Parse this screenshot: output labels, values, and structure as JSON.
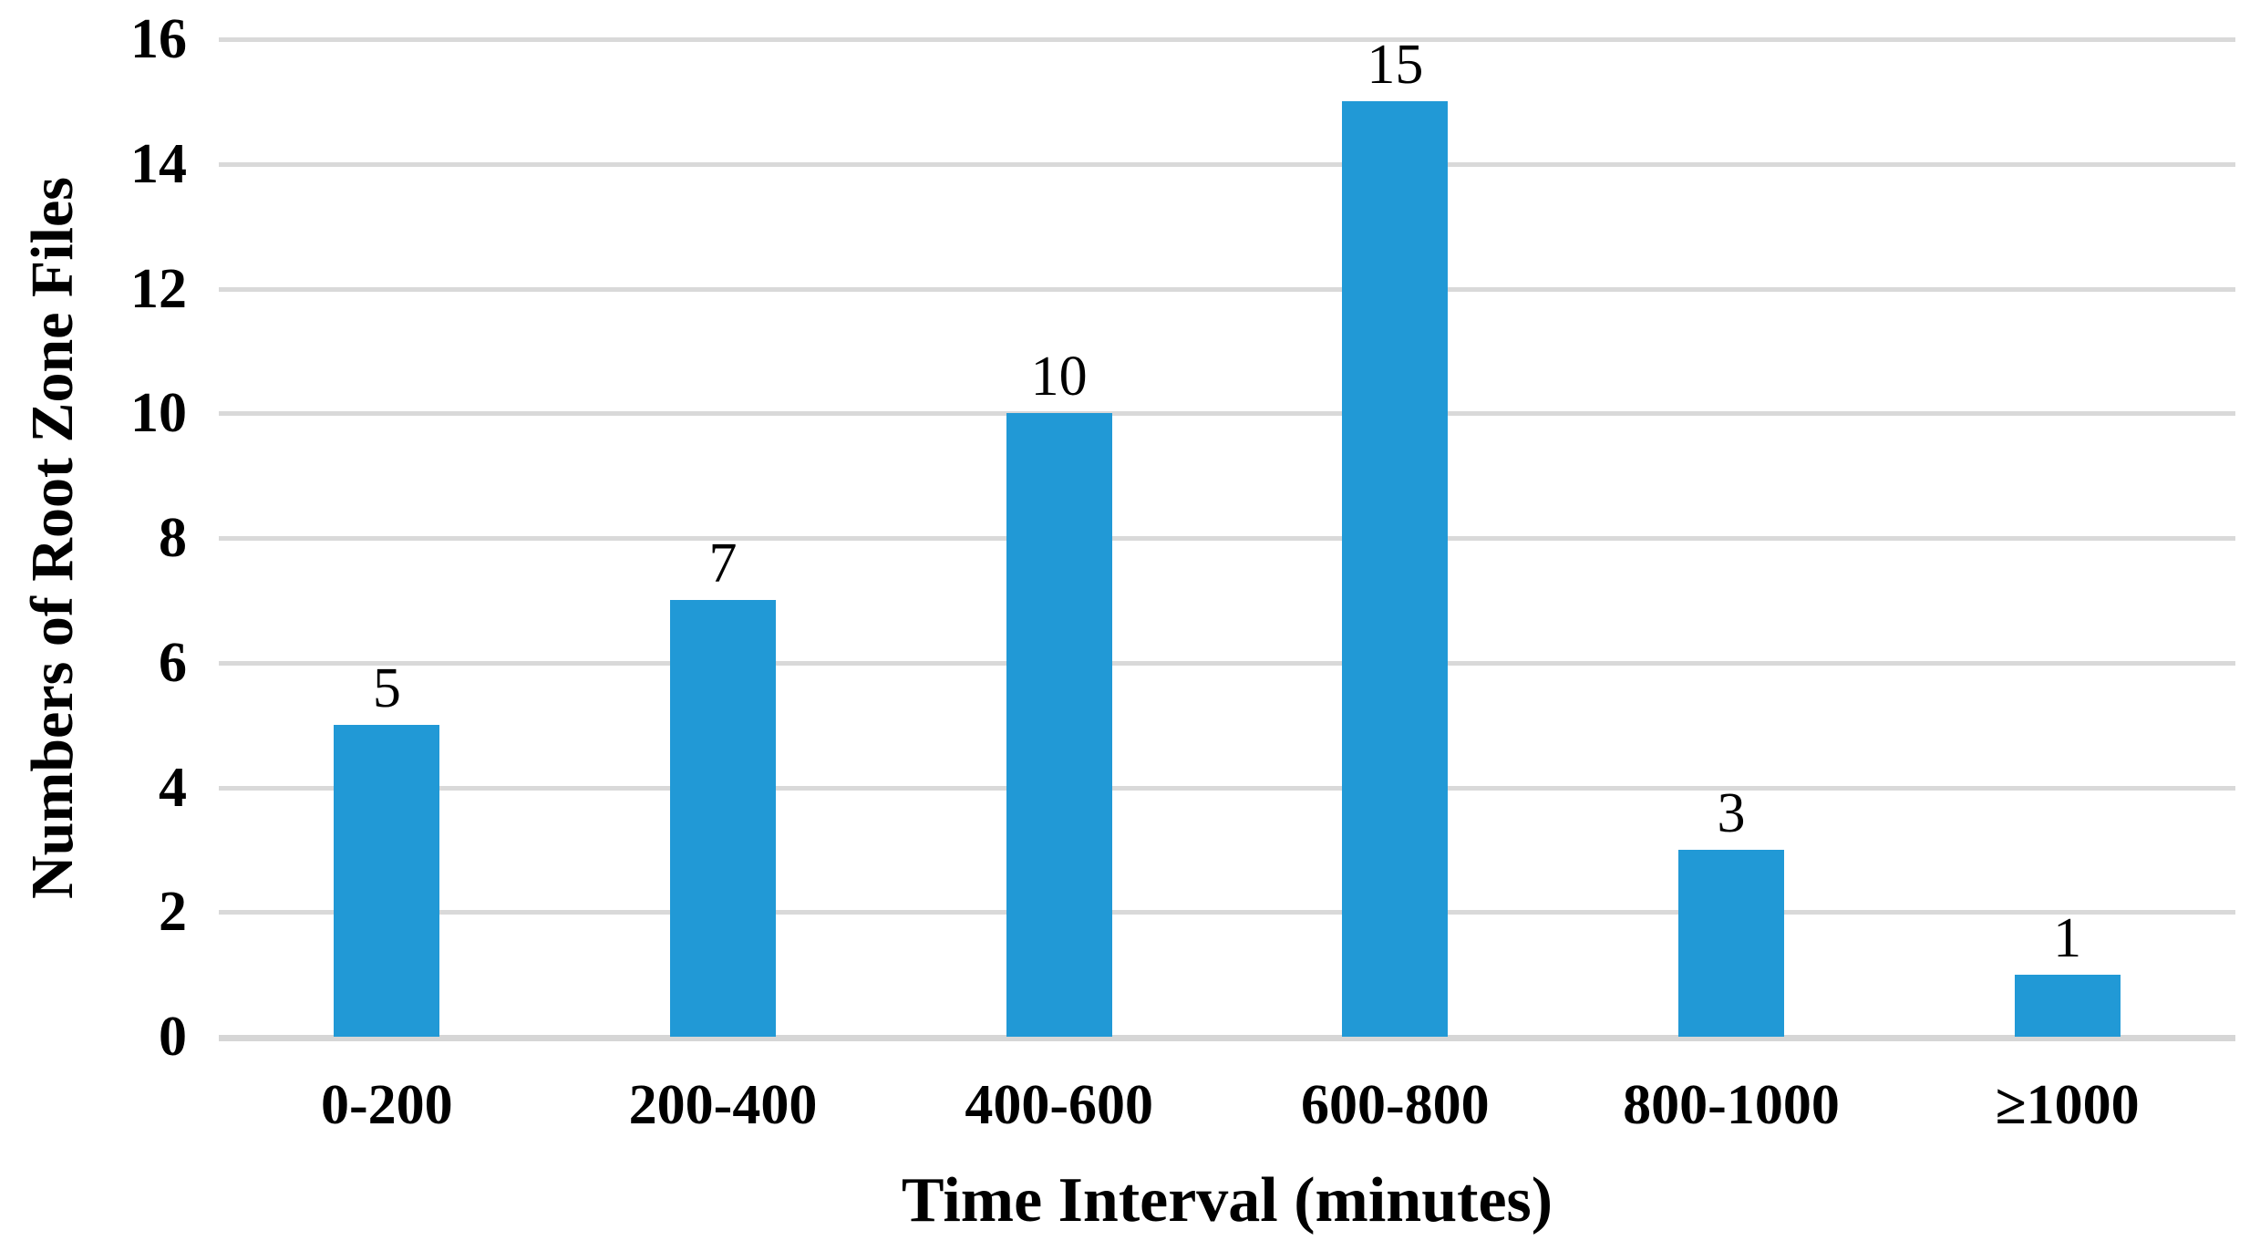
{
  "chart_data": {
    "type": "bar",
    "title": "",
    "xlabel": "Time Interval (minutes)",
    "ylabel": "Numbers of Root Zone Files",
    "categories": [
      "0-200",
      "200-400",
      "400-600",
      "600-800",
      "800-1000",
      "≥1000"
    ],
    "values": [
      5,
      7,
      10,
      15,
      3,
      1
    ],
    "data_labels": [
      "5",
      "7",
      "10",
      "15",
      "3",
      "1"
    ],
    "yticks": [
      0,
      2,
      4,
      6,
      8,
      10,
      12,
      14,
      16
    ],
    "ylim": [
      0,
      16
    ],
    "grid": true,
    "legend": false,
    "colors": {
      "bar": "#2199D6",
      "gridline": "#D9D9D9",
      "axis_line": "#D6D6D6",
      "text": "#000000",
      "background": "#FFFFFF"
    }
  }
}
